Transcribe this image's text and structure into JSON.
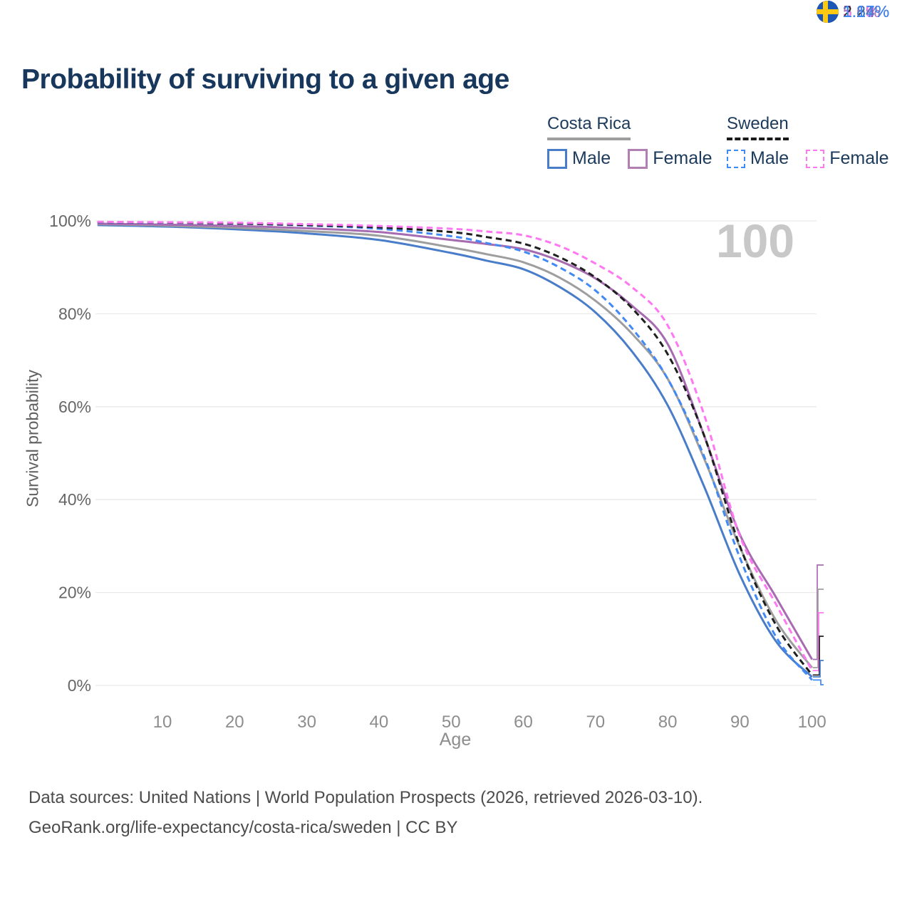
{
  "title": "Probability of surviving to a given age",
  "legend": {
    "groups": [
      {
        "country": "Costa Rica",
        "line_style": "solid",
        "line_color": "#9e9e9e",
        "items": [
          {
            "label": "Male",
            "color": "#4a7dc9"
          },
          {
            "label": "Female",
            "color": "#b27fb5"
          }
        ]
      },
      {
        "country": "Sweden",
        "line_style": "dashed",
        "line_color": "#1a1a1a",
        "items": [
          {
            "label": "Male",
            "color": "#4189f5"
          },
          {
            "label": "Female",
            "color": "#ff77f3"
          }
        ]
      }
    ]
  },
  "watermark": "100",
  "chart_data": {
    "type": "line",
    "title": "Probability of surviving to a given age",
    "xlabel": "Age",
    "ylabel": "Survival probability",
    "xlim": [
      0,
      100
    ],
    "ylim": [
      0,
      100
    ],
    "grid": "horizontal",
    "legend_position": "top-right",
    "x_ticks": [
      {
        "label": "10",
        "value": 10
      },
      {
        "label": "20",
        "value": 20
      },
      {
        "label": "30",
        "value": 30
      },
      {
        "label": "40",
        "value": 40
      },
      {
        "label": "50",
        "value": 50
      },
      {
        "label": "60",
        "value": 60
      },
      {
        "label": "70",
        "value": 70
      },
      {
        "label": "80",
        "value": 80
      },
      {
        "label": "90",
        "value": 90
      },
      {
        "label": "100",
        "value": 100
      }
    ],
    "y_ticks": [
      {
        "label": "0%",
        "value": 0
      },
      {
        "label": "20%",
        "value": 20
      },
      {
        "label": "40%",
        "value": 40
      },
      {
        "label": "60%",
        "value": 60
      },
      {
        "label": "80%",
        "value": 80
      },
      {
        "label": "100%",
        "value": 100
      }
    ],
    "x": [
      1,
      10,
      20,
      30,
      40,
      50,
      55,
      60,
      65,
      70,
      75,
      80,
      85,
      90,
      95,
      100
    ],
    "series": [
      {
        "name": "Costa Rica Male",
        "color": "#4a7dc9",
        "dashed": false,
        "values": [
          99.1,
          98.8,
          98.2,
          97.3,
          95.9,
          93.1,
          91.4,
          89.6,
          85.8,
          80.3,
          72.0,
          60.3,
          43.0,
          23.8,
          9.5,
          1.84
        ],
        "end_label": "1.84%"
      },
      {
        "name": "Costa Rica All",
        "color": "#9e9e9e",
        "dashed": false,
        "values": [
          99.3,
          99.0,
          98.5,
          97.8,
          96.8,
          94.3,
          92.8,
          91.1,
          87.8,
          82.8,
          75.8,
          66.0,
          49.0,
          29.8,
          14.0,
          3.83
        ],
        "end_label": "3.83%"
      },
      {
        "name": "Costa Rica Female",
        "color": "#a76bb1",
        "dashed": false,
        "values": [
          99.4,
          99.2,
          98.9,
          98.4,
          97.6,
          95.9,
          95.0,
          93.9,
          91.4,
          87.6,
          81.8,
          73.5,
          54.0,
          32.5,
          19.0,
          5.6
        ],
        "end_label": "5.6%"
      },
      {
        "name": "Sweden Male",
        "color": "#4189f5",
        "dashed": true,
        "values": [
          99.7,
          99.6,
          99.4,
          99.0,
          98.3,
          96.7,
          95.2,
          93.4,
          90.0,
          85.0,
          77.0,
          66.0,
          49.5,
          27.5,
          10.5,
          1.17
        ],
        "end_label": "1.17%"
      },
      {
        "name": "Sweden All",
        "color": "#1f1f1f",
        "dashed": true,
        "values": [
          99.75,
          99.65,
          99.45,
          99.1,
          98.6,
          97.6,
          96.5,
          95.1,
          92.2,
          87.8,
          81.3,
          71.3,
          54.0,
          30.0,
          13.0,
          2.24
        ],
        "end_label": "2.24%"
      },
      {
        "name": "Sweden Female",
        "color": "#ff77f3",
        "dashed": true,
        "values": [
          99.8,
          99.7,
          99.6,
          99.3,
          98.9,
          98.3,
          97.7,
          96.9,
          94.6,
          90.8,
          85.8,
          77.5,
          58.5,
          32.2,
          17.5,
          3.18
        ],
        "end_label": "3.18%"
      }
    ],
    "end_labels": [
      {
        "text": "5.6%",
        "country": "Costa Rica",
        "flag": "flag flag-cr",
        "color": "#a76bb1"
      },
      {
        "text": "3.83%",
        "country": "Costa Rica",
        "flag": "flag flag-cr",
        "color": "#a3a3a3"
      },
      {
        "text": "3.18%",
        "country": "Sweden",
        "flag": "flag flag-se",
        "color": "#ff77f3"
      },
      {
        "text": "2.24%",
        "country": "Sweden",
        "flag": "flag flag-se",
        "color": "#262626"
      },
      {
        "text": "1.84%",
        "country": "Costa Rica",
        "flag": "flag flag-cr",
        "color": "#4a7dc9"
      },
      {
        "text": "1.17%",
        "country": "Sweden",
        "flag": "flag flag-se",
        "color": "#4189f5"
      }
    ],
    "flag_colors": {
      "cr-blue": "#1f56b3",
      "cr-red": "#d6183a",
      "cr-white": "#f4f4f4",
      "se-blue": "#1c57b5",
      "se-yellow": "#fdc913"
    },
    "axis_colors": {
      "grid": "#e9e9e9",
      "y_tick": "#666666",
      "x_tick": "#8d8d8d"
    }
  },
  "footer": {
    "line1": "Data sources: United Nations | World Population Prospects (2026, retrieved 2026-03-10).",
    "line2": "GeoRank.org/life-expectancy/costa-rica/sweden | CC BY"
  }
}
